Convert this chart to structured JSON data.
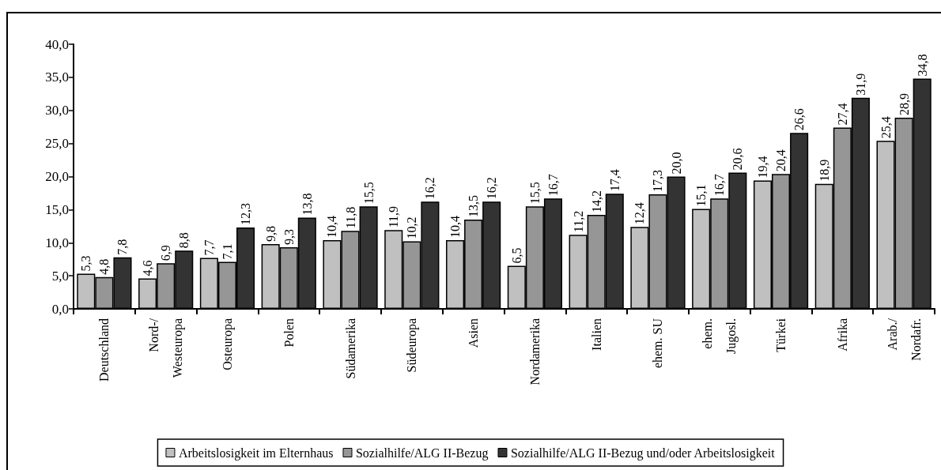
{
  "chart_data": {
    "type": "bar",
    "categories": [
      "Deutschland",
      "Nord-/\nWesteuropa",
      "Osteuropa",
      "Polen",
      "Südamerika",
      "Südeuropa",
      "Asien",
      "Nordamerika",
      "Italien",
      "ehem. SU",
      "ehem.\nJugosl.",
      "Türkei",
      "Afrika",
      "Arab./\nNordafr."
    ],
    "series": [
      {
        "name": "Arbeitslosigkeit im Elternhaus",
        "color": "#c0c0c0",
        "values": [
          5.3,
          4.6,
          7.7,
          9.8,
          10.4,
          11.9,
          10.4,
          6.5,
          11.2,
          12.4,
          15.1,
          19.4,
          18.9,
          25.4
        ],
        "value_labels": [
          "5,3",
          "4,6",
          "7,7",
          "9,8",
          "10,4",
          "11,9",
          "10,4",
          "6,5",
          "11,2",
          "12,4",
          "15,1",
          "19,4",
          "18,9",
          "25,4"
        ]
      },
      {
        "name": "Sozialhilfe/ALG II-Bezug",
        "color": "#969696",
        "values": [
          4.8,
          6.9,
          7.1,
          9.3,
          11.8,
          10.2,
          13.5,
          15.5,
          14.2,
          17.3,
          16.7,
          20.4,
          27.4,
          28.9
        ],
        "value_labels": [
          "4,8",
          "6,9",
          "7,1",
          "9,3",
          "11,8",
          "10,2",
          "13,5",
          "15,5",
          "14,2",
          "17,3",
          "16,7",
          "20,4",
          "27,4",
          "28,9"
        ]
      },
      {
        "name": "Sozialhilfe/ALG II-Bezug und/oder Arbeitslosigkeit",
        "color": "#333333",
        "values": [
          7.8,
          8.8,
          12.3,
          13.8,
          15.5,
          16.2,
          16.2,
          16.7,
          17.4,
          20.0,
          20.6,
          26.6,
          31.9,
          34.8
        ],
        "value_labels": [
          "7,8",
          "8,8",
          "12,3",
          "13,8",
          "15,5",
          "16,2",
          "16,2",
          "16,7",
          "17,4",
          "20,0",
          "20,6",
          "26,6",
          "31,9",
          "34,8"
        ]
      }
    ],
    "ylim": [
      0,
      40
    ],
    "yticks": [
      {
        "value": 0,
        "label": "0,0"
      },
      {
        "value": 5,
        "label": "5,0"
      },
      {
        "value": 10,
        "label": "10,0"
      },
      {
        "value": 15,
        "label": "15,0"
      },
      {
        "value": 20,
        "label": "20,0"
      },
      {
        "value": 25,
        "label": "25,0"
      },
      {
        "value": 30,
        "label": "30,0"
      },
      {
        "value": 35,
        "label": "35,0"
      },
      {
        "value": 40,
        "label": "40,0"
      }
    ],
    "grid": false,
    "legend": "bottom"
  }
}
